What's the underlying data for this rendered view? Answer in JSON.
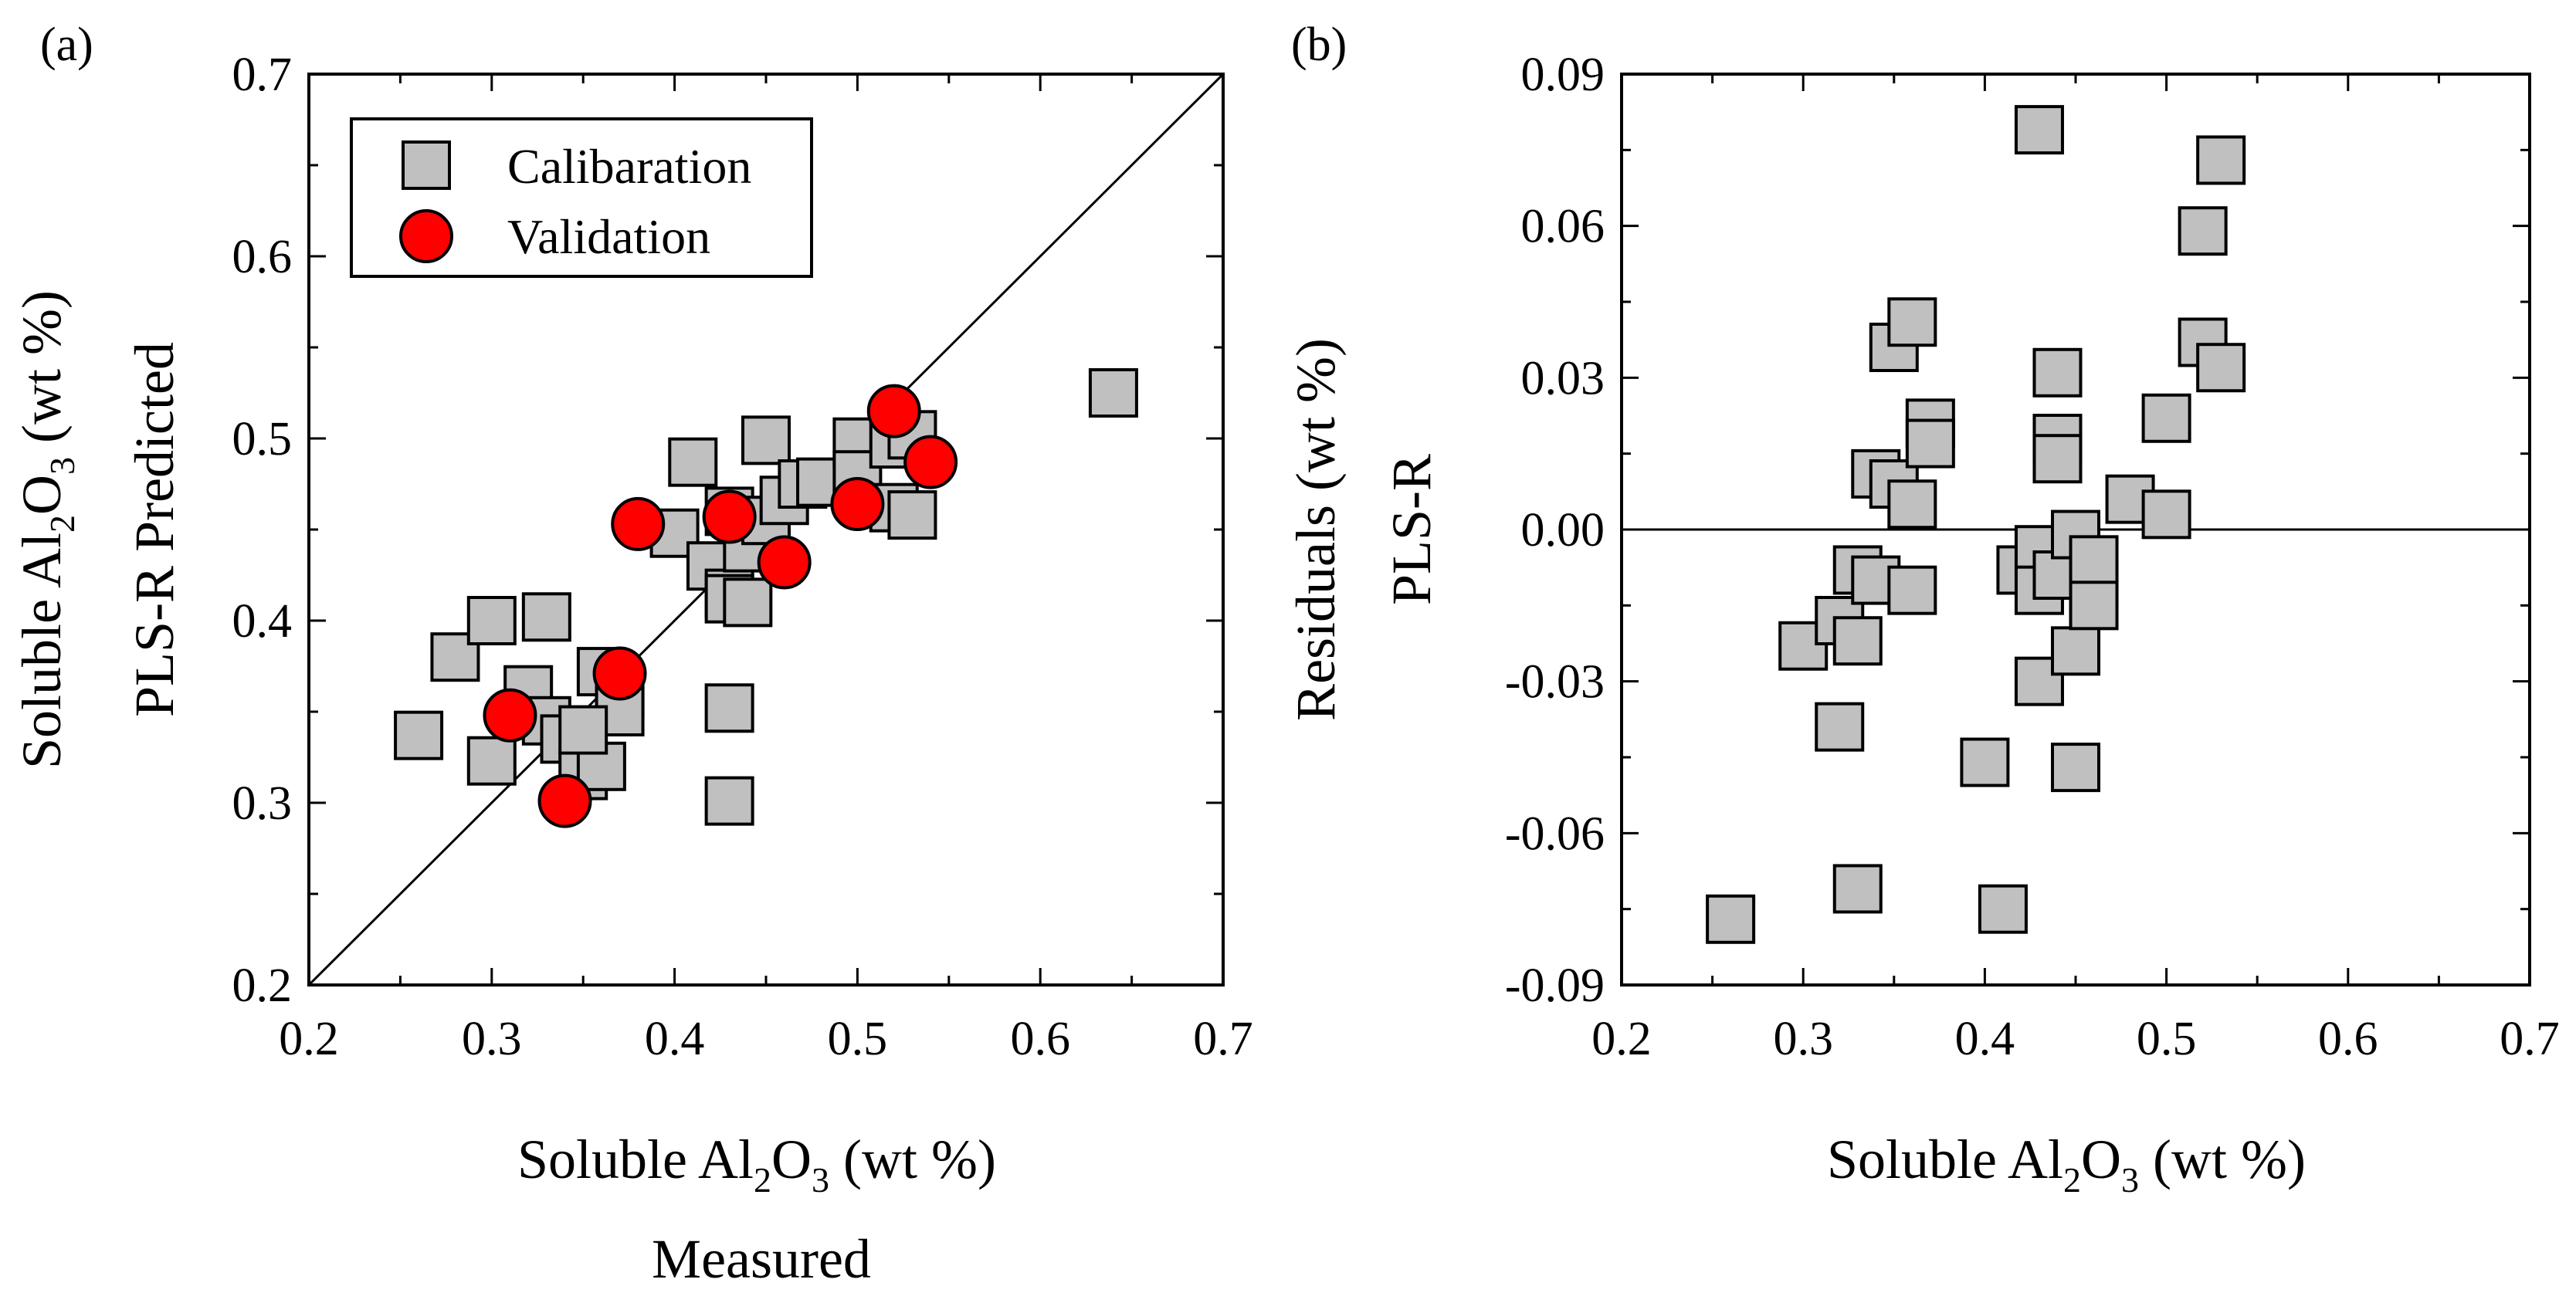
{
  "chart_data": [
    {
      "panel_label": "(a)",
      "type": "scatter",
      "xlabel": {
        "pre": "Soluble Al",
        "sub": "2",
        "mid": "O",
        "sub2": "3",
        "post": " (wt %)",
        "line2": "Measured"
      },
      "ylabel": {
        "line1": "Soluble Al",
        "sub": "2",
        "mid": "O",
        "sub2": "3",
        "post": " (wt %)",
        "line2": "PLS-R Predicted"
      },
      "xlim": [
        0.2,
        0.7
      ],
      "ylim": [
        0.2,
        0.7
      ],
      "xticks": [
        "0.2",
        "0.3",
        "0.4",
        "0.5",
        "0.6",
        "0.7"
      ],
      "yticks": [
        "0.2",
        "0.3",
        "0.4",
        "0.5",
        "0.6",
        "0.7"
      ],
      "reference_line": "1:1",
      "legend": {
        "placement": "top-left",
        "entries": [
          "Calibaration",
          "Validation"
        ]
      },
      "series": [
        {
          "name": "Calibaration",
          "marker": "square",
          "color": "#c0c0c0",
          "x": [
            0.26,
            0.28,
            0.3,
            0.3,
            0.33,
            0.32,
            0.33,
            0.34,
            0.35,
            0.36,
            0.37,
            0.37,
            0.36,
            0.35,
            0.4,
            0.41,
            0.42,
            0.43,
            0.43,
            0.44,
            0.43,
            0.44,
            0.45,
            0.45,
            0.46,
            0.47,
            0.48,
            0.5,
            0.5,
            0.52,
            0.52,
            0.53,
            0.53,
            0.43,
            0.43,
            0.64
          ],
          "y": [
            0.337,
            0.38,
            0.4,
            0.323,
            0.402,
            0.362,
            0.345,
            0.335,
            0.315,
            0.372,
            0.36,
            0.35,
            0.32,
            0.34,
            0.448,
            0.487,
            0.43,
            0.46,
            0.415,
            0.44,
            0.412,
            0.41,
            0.455,
            0.499,
            0.466,
            0.475,
            0.476,
            0.498,
            0.48,
            0.497,
            0.462,
            0.502,
            0.458,
            0.352,
            0.301,
            0.525
          ]
        },
        {
          "name": "Validation",
          "marker": "circle",
          "color": "#ff0000",
          "x": [
            0.31,
            0.34,
            0.37,
            0.38,
            0.43,
            0.46,
            0.5,
            0.52,
            0.54
          ],
          "y": [
            0.348,
            0.301,
            0.371,
            0.453,
            0.457,
            0.432,
            0.464,
            0.515,
            0.487
          ]
        }
      ]
    },
    {
      "panel_label": "(b)",
      "type": "scatter",
      "xlabel": {
        "pre": "Soluble Al",
        "sub": "2",
        "mid": "O",
        "sub2": "3",
        "post": " (wt %)"
      },
      "ylabel": {
        "line1": "Residuals (wt %)",
        "line2": "PLS-R"
      },
      "xlim": [
        0.2,
        0.7
      ],
      "ylim": [
        -0.09,
        0.09
      ],
      "xticks": [
        "0.2",
        "0.3",
        "0.4",
        "0.5",
        "0.6",
        "0.7"
      ],
      "yticks": [
        "-0.09",
        "-0.06",
        "-0.03",
        "0.00",
        "0.03",
        "0.06",
        "0.09"
      ],
      "reference_line": "y=0",
      "series": [
        {
          "name": "",
          "marker": "square",
          "color": "#c0c0c0",
          "x": [
            0.26,
            0.3,
            0.32,
            0.32,
            0.33,
            0.33,
            0.33,
            0.34,
            0.34,
            0.35,
            0.35,
            0.36,
            0.36,
            0.36,
            0.37,
            0.37,
            0.4,
            0.41,
            0.42,
            0.43,
            0.43,
            0.43,
            0.43,
            0.44,
            0.44,
            0.44,
            0.44,
            0.45,
            0.45,
            0.45,
            0.46,
            0.46,
            0.46,
            0.48,
            0.5,
            0.5,
            0.52,
            0.52,
            0.53,
            0.53
          ],
          "y": [
            -0.077,
            -0.023,
            -0.039,
            -0.018,
            -0.071,
            -0.022,
            -0.008,
            -0.01,
            0.011,
            0.036,
            0.009,
            0.041,
            0.005,
            -0.012,
            0.021,
            0.017,
            -0.046,
            -0.075,
            -0.008,
            0.079,
            -0.004,
            -0.012,
            -0.03,
            0.031,
            0.018,
            0.014,
            -0.009,
            -0.047,
            -0.024,
            -0.001,
            -0.011,
            -0.006,
            -0.015,
            0.006,
            0.022,
            0.003,
            0.037,
            0.059,
            0.032,
            0.073
          ]
        }
      ]
    }
  ]
}
